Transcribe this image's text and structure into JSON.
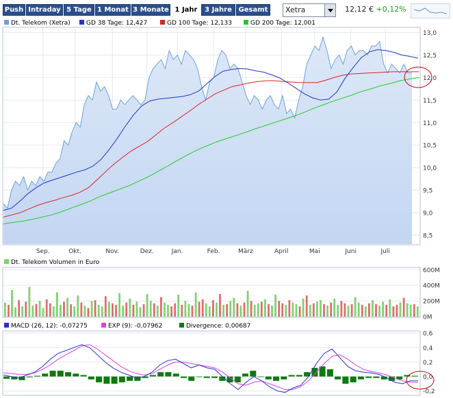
{
  "toolbar": {
    "buttons": [
      "Push",
      "Intraday",
      "5 Tage",
      "1 Monat",
      "3 Monate",
      "1 Jahr",
      "3 Jahre",
      "Gesamt"
    ],
    "active": "1 Jahr",
    "exchange": "Xetra",
    "price": "12,12 €",
    "change": "+0,12%"
  },
  "colors": {
    "price": "#6ea0dc",
    "gd38": "#2233cc",
    "gd100": "#dd2222",
    "gd200": "#22cc22",
    "vol_up": "#7ed36e",
    "vol_down": "#e06b6b",
    "macd": "#2233cc",
    "exp": "#e040e0",
    "div": "#0e7a0e",
    "circle": "#cc0000"
  },
  "chart_data": [
    {
      "type": "line",
      "legend": [
        {
          "label": "Dt. Telekom (Xetra)",
          "color": "#6ea0dc"
        },
        {
          "label": "GD 38 Tage: 12,427",
          "color": "#2233cc"
        },
        {
          "label": "GD 100 Tage: 12,133",
          "color": "#dd2222"
        },
        {
          "label": "GD 200 Tage: 12,001",
          "color": "#22cc22"
        }
      ],
      "ylim": [
        8.3,
        13.1
      ],
      "yticks": [
        "13,0",
        "12,5",
        "12,0",
        "11,5",
        "11,0",
        "10,5",
        "10,0",
        "9,5",
        "9,0",
        "8,5"
      ],
      "ytick_values": [
        13.0,
        12.5,
        12.0,
        11.5,
        11.0,
        10.5,
        10.0,
        9.5,
        9.0,
        8.5
      ],
      "months": [
        "Sep.",
        "Okt.",
        "Nov.",
        "Dez.",
        "Jan.",
        "Feb.",
        "März",
        "April",
        "Mai",
        "Juni",
        "Juli"
      ],
      "month_pos": [
        0.095,
        0.172,
        0.262,
        0.345,
        0.418,
        0.505,
        0.582,
        0.668,
        0.748,
        0.835,
        0.918
      ],
      "series": [
        {
          "name": "Dt. Telekom (Xetra)",
          "values": [
            9.2,
            9.1,
            9.5,
            9.7,
            9.6,
            9.8,
            9.5,
            9.7,
            9.6,
            9.8,
            9.7,
            9.9,
            9.9,
            10.1,
            10.2,
            10.6,
            10.5,
            10.8,
            11.0,
            10.9,
            11.4,
            11.6,
            11.5,
            11.9,
            11.7,
            11.8,
            11.6,
            11.3,
            11.3,
            11.5,
            11.4,
            11.5,
            11.6,
            11.5,
            11.4,
            11.5,
            12.0,
            12.2,
            12.3,
            12.4,
            12.2,
            12.6,
            12.4,
            12.5,
            12.3,
            12.6,
            12.5,
            12.4,
            12.2,
            11.8,
            11.5,
            11.9,
            12.0,
            12.4,
            12.6,
            12.5,
            12.2,
            12.3,
            12.2,
            11.9,
            11.6,
            11.4,
            11.6,
            11.5,
            11.3,
            11.5,
            11.6,
            11.4,
            11.3,
            11.6,
            11.2,
            11.3,
            11.1,
            11.5,
            11.8,
            12.3,
            12.5,
            12.7,
            12.6,
            12.9,
            12.6,
            12.2,
            12.4,
            12.5,
            12.3,
            12.6,
            12.7,
            12.5,
            12.6,
            12.6,
            12.5,
            12.7,
            12.7,
            12.8,
            12.3,
            12.1,
            12.3,
            12.2,
            12.1,
            12.3,
            12.1,
            12.1
          ]
        },
        {
          "name": "GD 38 Tage",
          "values": [
            9.05,
            9.1,
            9.25,
            9.42,
            9.55,
            9.66,
            9.72,
            9.78,
            9.84,
            9.9,
            9.95,
            10.03,
            10.18,
            10.4,
            10.65,
            10.92,
            11.17,
            11.37,
            11.48,
            11.52,
            11.54,
            11.56,
            11.58,
            11.62,
            11.7,
            11.86,
            12.02,
            12.14,
            12.18,
            12.2,
            12.19,
            12.15,
            12.12,
            12.06,
            11.99,
            11.88,
            11.76,
            11.64,
            11.55,
            11.5,
            11.52,
            11.68,
            11.98,
            12.22,
            12.44,
            12.57,
            12.62,
            12.6,
            12.56,
            12.5,
            12.47,
            12.43
          ]
        },
        {
          "name": "GD 100 Tage",
          "values": [
            8.9,
            8.95,
            9.0,
            9.08,
            9.16,
            9.22,
            9.27,
            9.33,
            9.38,
            9.45,
            9.55,
            9.72,
            9.9,
            10.07,
            10.22,
            10.36,
            10.47,
            10.58,
            10.73,
            10.88,
            11.0,
            11.13,
            11.26,
            11.4,
            11.52,
            11.64,
            11.72,
            11.8,
            11.84,
            11.88,
            11.91,
            11.93,
            11.93,
            11.91,
            11.9,
            11.89,
            11.89,
            11.89,
            11.94,
            12.0,
            12.05,
            12.08,
            12.09,
            12.1,
            12.11,
            12.12,
            12.13,
            12.13,
            12.13,
            12.13
          ]
        },
        {
          "name": "GD 200 Tage",
          "values": [
            8.75,
            8.78,
            8.81,
            8.85,
            8.9,
            8.95,
            9.02,
            9.1,
            9.18,
            9.26,
            9.36,
            9.44,
            9.52,
            9.6,
            9.7,
            9.8,
            9.92,
            10.04,
            10.16,
            10.28,
            10.39,
            10.48,
            10.57,
            10.64,
            10.71,
            10.78,
            10.86,
            10.93,
            11.0,
            11.07,
            11.14,
            11.22,
            11.31,
            11.39,
            11.47,
            11.54,
            11.61,
            11.69,
            11.75,
            11.82,
            11.87,
            11.93,
            11.97,
            12.0
          ]
        }
      ]
    },
    {
      "type": "bar",
      "legend": [
        {
          "label": "Dt. Telekom Volumen in Euro",
          "color": "#7ed36e"
        }
      ],
      "ylim": [
        0,
        620
      ],
      "yticks": [
        "600M",
        "400M",
        "200M",
        "0M"
      ],
      "ytick_values": [
        600,
        400,
        200,
        0
      ],
      "values": [
        180,
        150,
        340,
        120,
        210,
        130,
        190,
        380,
        140,
        160,
        200,
        110,
        220,
        170,
        130,
        310,
        150,
        190,
        240,
        160,
        130,
        270,
        180,
        140,
        110,
        200,
        210,
        150,
        130,
        260,
        190,
        170,
        150,
        300,
        140,
        180,
        230,
        150,
        190,
        120,
        160,
        290,
        200,
        170,
        140,
        250,
        180,
        150,
        130,
        170,
        280,
        150,
        200,
        160,
        140,
        310,
        190,
        220,
        170,
        130,
        210,
        180,
        290,
        150,
        160,
        200,
        240,
        170,
        140,
        180,
        330,
        200,
        150,
        170,
        190,
        220,
        160,
        140,
        280,
        200,
        170,
        150,
        210,
        180,
        160,
        130,
        230,
        270,
        150,
        170,
        190,
        210,
        160,
        140,
        180,
        230,
        150,
        200,
        170,
        140,
        160,
        250,
        180,
        150,
        130,
        170,
        210,
        160,
        140,
        190,
        150,
        220,
        130,
        150,
        180,
        240,
        170,
        150,
        160,
        130
      ],
      "directions": [
        1,
        0,
        1,
        1,
        0,
        1,
        0,
        1,
        1,
        0,
        1,
        1,
        0,
        0,
        1,
        1,
        1,
        0,
        1,
        0,
        1,
        1,
        0,
        1,
        0,
        1,
        0,
        1,
        1,
        0,
        1,
        0,
        0,
        1,
        1,
        0,
        1,
        0,
        1,
        1,
        0,
        1,
        1,
        0,
        1,
        0,
        1,
        1,
        0,
        0,
        1,
        0,
        1,
        1,
        0,
        1,
        0,
        0,
        1,
        1,
        0,
        1,
        0,
        1,
        0,
        1,
        1,
        0,
        1,
        0,
        1,
        0,
        1,
        1,
        0,
        1,
        0,
        1,
        1,
        0,
        0,
        1,
        0,
        1,
        1,
        0,
        1,
        0,
        1,
        0,
        1,
        1,
        0,
        1,
        0,
        1,
        1,
        0,
        0,
        1,
        0,
        1,
        1,
        0,
        1,
        0,
        1,
        0,
        1,
        1,
        0,
        1,
        0,
        0,
        1,
        0,
        1,
        1,
        0,
        1
      ]
    },
    {
      "type": "line",
      "legend": [
        {
          "label": "MACD (26, 12): -0,07275",
          "color": "#2233cc"
        },
        {
          "label": "EXP (9): -0,07962",
          "color": "#e040e0"
        },
        {
          "label": "Divergence: 0,00687",
          "color": "#0e7a0e"
        }
      ],
      "ylim": [
        -0.25,
        0.62
      ],
      "yticks": [
        "0,6",
        "0,4",
        "0,2",
        "0,0",
        "-0,2"
      ],
      "ytick_values": [
        0.6,
        0.4,
        0.2,
        0.0,
        -0.2
      ],
      "series": [
        {
          "name": "MACD",
          "values": [
            0.02,
            0.0,
            -0.02,
            0.02,
            0.06,
            0.14,
            0.24,
            0.32,
            0.36,
            0.4,
            0.44,
            0.4,
            0.3,
            0.2,
            0.12,
            0.06,
            0.02,
            -0.02,
            0.0,
            0.06,
            0.16,
            0.22,
            0.24,
            0.18,
            0.12,
            0.16,
            0.12,
            0.1,
            0.0,
            -0.1,
            -0.18,
            -0.08,
            0.0,
            -0.06,
            -0.14,
            -0.2,
            -0.22,
            -0.16,
            -0.12,
            0.0,
            0.18,
            0.32,
            0.38,
            0.26,
            0.14,
            0.08,
            0.06,
            0.05,
            0.03,
            -0.02,
            -0.08,
            -0.1,
            -0.06,
            -0.06
          ]
        },
        {
          "name": "EXP (9)",
          "values": [
            0.05,
            0.04,
            0.03,
            0.03,
            0.05,
            0.1,
            0.16,
            0.24,
            0.3,
            0.36,
            0.42,
            0.44,
            0.38,
            0.3,
            0.22,
            0.14,
            0.08,
            0.04,
            0.02,
            0.04,
            0.1,
            0.16,
            0.2,
            0.2,
            0.18,
            0.16,
            0.14,
            0.12,
            0.06,
            -0.02,
            -0.1,
            -0.12,
            -0.08,
            -0.06,
            -0.1,
            -0.14,
            -0.18,
            -0.18,
            -0.14,
            -0.06,
            0.06,
            0.18,
            0.28,
            0.3,
            0.24,
            0.16,
            0.1,
            0.07,
            0.05,
            0.02,
            -0.02,
            -0.06,
            -0.08,
            -0.08
          ]
        }
      ],
      "divergence": [
        -0.03,
        -0.04,
        -0.05,
        -0.01,
        0.01,
        0.04,
        0.08,
        0.08,
        0.06,
        0.04,
        0.02,
        -0.04,
        -0.08,
        -0.1,
        -0.1,
        -0.08,
        -0.06,
        -0.06,
        -0.02,
        0.02,
        0.06,
        0.06,
        0.04,
        -0.02,
        -0.06,
        0.0,
        -0.02,
        -0.02,
        -0.06,
        -0.08,
        -0.08,
        0.04,
        0.08,
        0.0,
        -0.04,
        -0.06,
        -0.04,
        0.02,
        0.02,
        0.06,
        0.12,
        0.14,
        0.1,
        -0.04,
        -0.1,
        -0.08,
        -0.04,
        -0.02,
        -0.02,
        -0.04,
        -0.06,
        -0.04,
        0.02,
        0.01
      ]
    }
  ]
}
